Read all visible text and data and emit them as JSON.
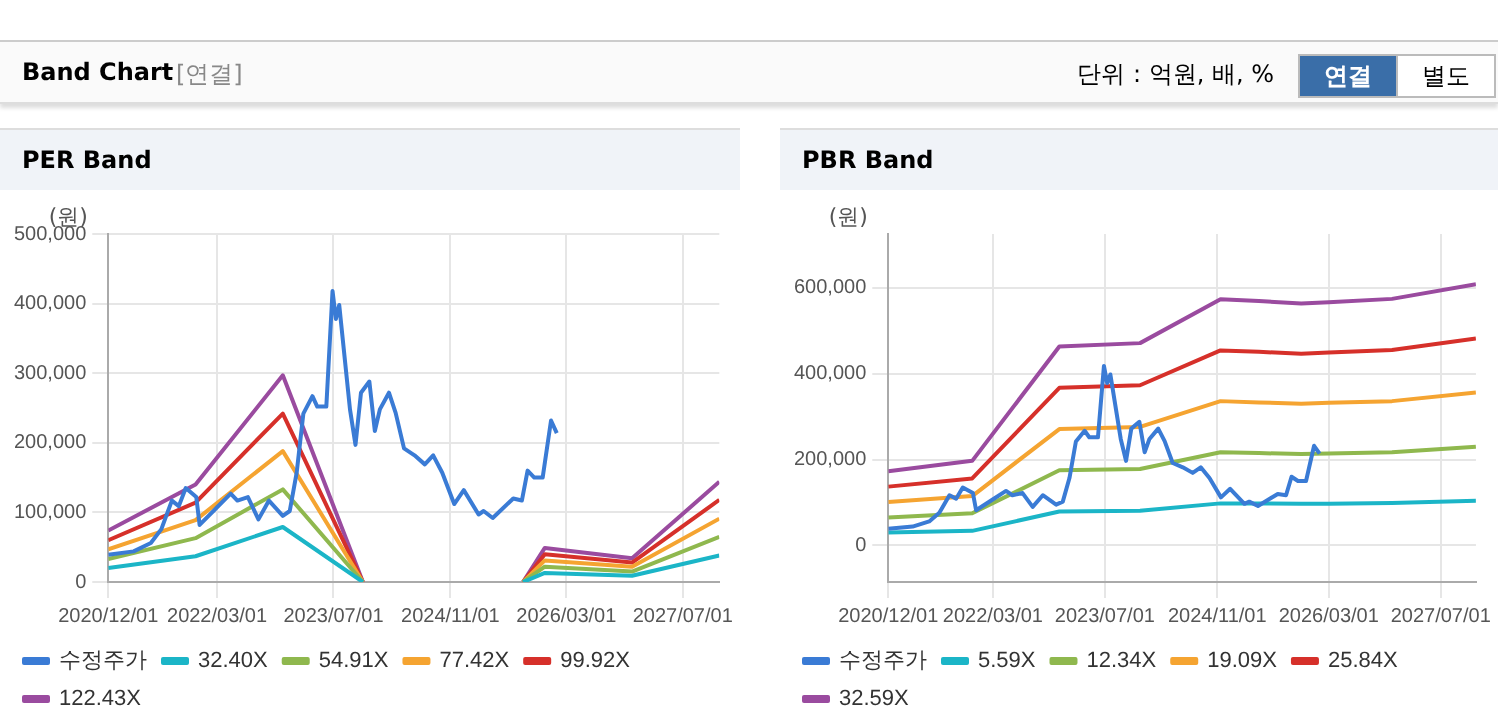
{
  "chart_data": [
    {
      "type": "other",
      "title": "Band Chart",
      "annotations": [
        "[연결]",
        "단위 : 억원, 배, %",
        "연결",
        "별도"
      ]
    },
    {
      "type": "line",
      "title": "PER Band",
      "ylabel": "(원)",
      "x": [
        "2020-12-01",
        "2021-12-01",
        "2022-12-01",
        "2023-11-01",
        "2024-11-01",
        "2025-09-01",
        "2025-12-01",
        "2026-12-01",
        "2027-12-01"
      ],
      "xlim": [
        "2020-12-01",
        "2027-12-01"
      ],
      "xticks": [
        {
          "value": "2020-12-01",
          "label": "2020/12/01"
        },
        {
          "value": "2022-03-01",
          "label": "2022/03/01"
        },
        {
          "value": "2023-07-01",
          "label": "2023/07/01"
        },
        {
          "value": "2024-11-01",
          "label": "2024/11/01"
        },
        {
          "value": "2026-03-01",
          "label": "2026/03/01"
        },
        {
          "value": "2027-07-01",
          "label": "2027/07/01"
        }
      ],
      "ylim": [
        0,
        500000
      ],
      "yticks": [
        {
          "value": 0,
          "label": "0"
        },
        {
          "value": 100000,
          "label": "100,000"
        },
        {
          "value": 200000,
          "label": "200,000"
        },
        {
          "value": 300000,
          "label": "300,000"
        },
        {
          "value": 400000,
          "label": "400,000"
        },
        {
          "value": 500000,
          "label": "500,000"
        }
      ],
      "grid": true,
      "legend": "bottom",
      "marker": "none",
      "line_style": "solid",
      "series": [
        {
          "name": "수정주가",
          "color": "#3a7bd5",
          "x": [
            "2020-12-01",
            "2021-03-17",
            "2021-05-28",
            "2021-07-11",
            "2021-08-24",
            "2021-09-22",
            "2021-10-21",
            "2021-12-04",
            "2021-12-18",
            "2022-02-28",
            "2022-04-27",
            "2022-05-25",
            "2022-07-08",
            "2022-08-21",
            "2022-10-04",
            "2022-12-01",
            "2022-12-30",
            "2023-01-28",
            "2023-02-25",
            "2023-04-04",
            "2023-04-24",
            "2023-06-01",
            "2023-06-27",
            "2023-07-11",
            "2023-07-25",
            "2023-08-18",
            "2023-09-08",
            "2023-10-01",
            "2023-10-24",
            "2023-11-28",
            "2023-12-21",
            "2024-01-11",
            "2024-02-18",
            "2024-03-17",
            "2024-04-21",
            "2024-06-04",
            "2024-07-17",
            "2024-08-21",
            "2024-09-28",
            "2024-11-17",
            "2024-12-27",
            "2025-02-27",
            "2025-03-20",
            "2025-04-27",
            "2025-07-22",
            "2025-08-27",
            "2025-09-20",
            "2025-10-18",
            "2025-11-22",
            "2025-12-27",
            "2026-01-20"
          ],
          "values": [
            39000,
            44000,
            56000,
            76000,
            117000,
            109000,
            135000,
            122000,
            82000,
            107000,
            127000,
            117000,
            122000,
            90000,
            117000,
            95000,
            102000,
            157000,
            242000,
            267000,
            252000,
            252000,
            418000,
            378000,
            398000,
            318000,
            248000,
            197000,
            272000,
            288000,
            217000,
            248000,
            272000,
            243000,
            192000,
            182000,
            169000,
            182000,
            157000,
            112000,
            132000,
            97000,
            102000,
            92000,
            120000,
            117000,
            160000,
            150000,
            150000,
            232000,
            214000
          ]
        },
        {
          "name": "32.40X",
          "color": "#1bb5c7",
          "values": [
            20000,
            37000,
            79000,
            0,
            null,
            0,
            13000,
            9000,
            38000
          ]
        },
        {
          "name": "54.91X",
          "color": "#8fb84e",
          "values": [
            33000,
            63000,
            133000,
            0,
            null,
            0,
            22000,
            15000,
            65000
          ]
        },
        {
          "name": "77.42X",
          "color": "#f5a431",
          "values": [
            47000,
            89000,
            188000,
            0,
            null,
            0,
            31000,
            22000,
            91000
          ]
        },
        {
          "name": "99.92X",
          "color": "#d6302a",
          "values": [
            60000,
            114000,
            242000,
            0,
            null,
            0,
            40000,
            28000,
            118000
          ]
        },
        {
          "name": "122.43X",
          "color": "#9a4b9f",
          "values": [
            74000,
            140000,
            297000,
            0,
            null,
            0,
            49000,
            34000,
            144000
          ]
        }
      ]
    },
    {
      "type": "line",
      "title": "PBR Band",
      "ylabel": "(원)",
      "x": [
        "2020-12-01",
        "2021-12-01",
        "2022-12-15",
        "2023-12-01",
        "2024-11-15",
        "2025-05-01",
        "2025-11-01",
        "2026-03-01",
        "2026-12-01",
        "2027-12-01"
      ],
      "xlim": [
        "2020-12-01",
        "2027-12-01"
      ],
      "xticks": [
        {
          "value": "2020-12-01",
          "label": "2020/12/01"
        },
        {
          "value": "2022-03-01",
          "label": "2022/03/01"
        },
        {
          "value": "2023-07-01",
          "label": "2023/07/01"
        },
        {
          "value": "2024-11-01",
          "label": "2024/11/01"
        },
        {
          "value": "2026-03-01",
          "label": "2026/03/01"
        },
        {
          "value": "2027-07-01",
          "label": "2027/07/01"
        }
      ],
      "ylim": [
        -85000,
        725000
      ],
      "yticks": [
        {
          "value": 0,
          "label": "0"
        },
        {
          "value": 200000,
          "label": "200,000"
        },
        {
          "value": 400000,
          "label": "400,000"
        },
        {
          "value": 600000,
          "label": "600,000"
        }
      ],
      "grid": true,
      "legend": "bottom",
      "marker": "none",
      "line_style": "solid",
      "series": [
        {
          "name": "수정주가",
          "color": "#3a7bd5",
          "x": [
            "2020-12-01",
            "2021-03-17",
            "2021-05-28",
            "2021-07-11",
            "2021-08-24",
            "2021-09-22",
            "2021-10-21",
            "2021-12-04",
            "2021-12-18",
            "2022-02-28",
            "2022-04-27",
            "2022-05-25",
            "2022-07-08",
            "2022-08-21",
            "2022-10-04",
            "2022-12-01",
            "2022-12-30",
            "2023-01-28",
            "2023-02-25",
            "2023-04-04",
            "2023-04-24",
            "2023-06-01",
            "2023-06-27",
            "2023-07-11",
            "2023-07-25",
            "2023-08-18",
            "2023-09-08",
            "2023-10-01",
            "2023-10-24",
            "2023-11-28",
            "2023-12-21",
            "2024-01-11",
            "2024-02-18",
            "2024-03-17",
            "2024-04-21",
            "2024-06-04",
            "2024-07-17",
            "2024-08-21",
            "2024-09-28",
            "2024-11-17",
            "2024-12-27",
            "2025-02-27",
            "2025-03-20",
            "2025-04-27",
            "2025-07-22",
            "2025-08-27",
            "2025-09-20",
            "2025-10-18",
            "2025-11-22",
            "2025-12-27",
            "2026-01-20"
          ],
          "values": [
            39000,
            44000,
            56000,
            76000,
            117000,
            109000,
            135000,
            122000,
            82000,
            107000,
            127000,
            117000,
            122000,
            90000,
            117000,
            95000,
            102000,
            157000,
            242000,
            267000,
            252000,
            252000,
            418000,
            378000,
            398000,
            318000,
            248000,
            197000,
            272000,
            288000,
            217000,
            248000,
            272000,
            243000,
            192000,
            182000,
            169000,
            182000,
            157000,
            112000,
            132000,
            97000,
            102000,
            92000,
            120000,
            117000,
            160000,
            150000,
            150000,
            232000,
            214000
          ]
        },
        {
          "name": "5.59X",
          "color": "#1bb5c7",
          "values": [
            30000,
            34000,
            79000,
            81000,
            98000,
            98000,
            97000,
            97000,
            99000,
            104000
          ]
        },
        {
          "name": "12.34X",
          "color": "#8fb84e",
          "values": [
            65000,
            75000,
            175000,
            178000,
            217000,
            215000,
            213000,
            214000,
            217000,
            230000
          ]
        },
        {
          "name": "19.09X",
          "color": "#f5a431",
          "values": [
            101000,
            115000,
            271000,
            276000,
            336000,
            333000,
            330000,
            332000,
            336000,
            356000
          ]
        },
        {
          "name": "25.84X",
          "color": "#d6302a",
          "values": [
            137000,
            156000,
            367000,
            373000,
            454000,
            451000,
            446000,
            449000,
            455000,
            482000
          ]
        },
        {
          "name": "32.59X",
          "color": "#9a4b9f",
          "values": [
            173000,
            197000,
            463000,
            471000,
            573000,
            569000,
            563000,
            566000,
            574000,
            608000
          ]
        }
      ]
    }
  ]
}
